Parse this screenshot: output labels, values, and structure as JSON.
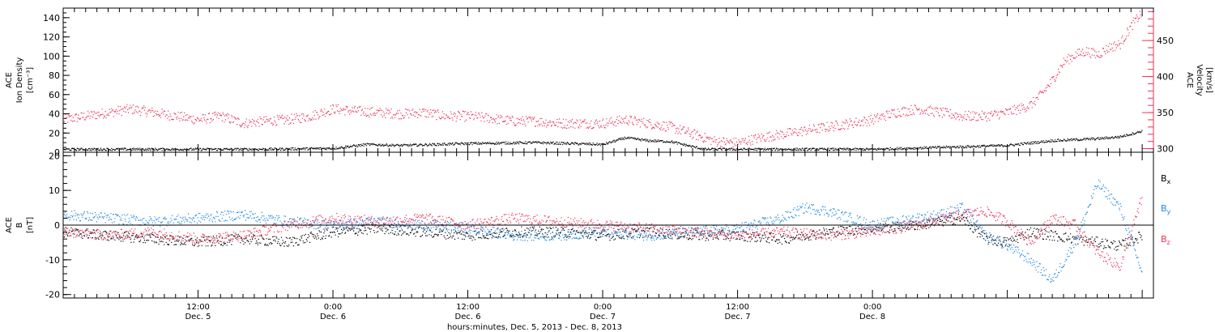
{
  "chart_data": [
    {
      "type": "scatter",
      "panel": "top",
      "ylabel_left": [
        "ACE",
        "Ion Density",
        "[cm⁻³]"
      ],
      "ylabel_right": [
        "ACE",
        "Velocity",
        "[km/s]"
      ],
      "ylim_left": [
        0,
        150
      ],
      "yticks_left": [
        0,
        20,
        40,
        60,
        80,
        100,
        120,
        140
      ],
      "ylim_right": [
        295,
        495
      ],
      "yticks_right": [
        300,
        350,
        400,
        450
      ],
      "xlim_hours": [
        0,
        97
      ],
      "series": [
        {
          "axis": "left",
          "color": "#000000",
          "x": [
            0,
            6,
            12,
            18,
            24,
            27,
            30,
            36,
            42,
            48,
            50,
            52,
            54,
            57,
            60,
            66,
            72,
            78,
            84,
            88,
            90,
            92,
            93,
            94,
            95,
            96
          ],
          "y": [
            3,
            3,
            3,
            3,
            4,
            8,
            7,
            9,
            10,
            8,
            15,
            12,
            11,
            3,
            3,
            3,
            3,
            5,
            7,
            12,
            13,
            14,
            15,
            16,
            19,
            22
          ]
        },
        {
          "axis": "right",
          "color": "#e8335a",
          "x": [
            0,
            2,
            4,
            6,
            8,
            10,
            12,
            14,
            16,
            18,
            20,
            22,
            24,
            26,
            28,
            30,
            32,
            34,
            36,
            38,
            40,
            42,
            44,
            46,
            48,
            50,
            52,
            54,
            56,
            58,
            60,
            62,
            64,
            66,
            68,
            70,
            72,
            74,
            76,
            78,
            80,
            82,
            84,
            86,
            87,
            88,
            89,
            90,
            91,
            92,
            93,
            94,
            95,
            96
          ],
          "y": [
            340,
            345,
            350,
            355,
            350,
            345,
            340,
            345,
            335,
            338,
            340,
            345,
            355,
            352,
            350,
            348,
            350,
            345,
            345,
            342,
            338,
            338,
            335,
            335,
            335,
            340,
            335,
            330,
            320,
            310,
            308,
            315,
            320,
            325,
            330,
            335,
            340,
            350,
            355,
            350,
            345,
            345,
            350,
            360,
            375,
            395,
            420,
            430,
            435,
            430,
            440,
            445,
            470,
            490
          ]
        }
      ]
    },
    {
      "type": "scatter",
      "panel": "bottom",
      "ylabel": [
        "ACE",
        "B",
        "[nT]"
      ],
      "ylim": [
        -21,
        21
      ],
      "yticks": [
        -20,
        -10,
        0,
        10,
        20
      ],
      "xlim_hours": [
        0,
        97
      ],
      "legend": [
        "Bx",
        "By",
        "Bz"
      ],
      "series": [
        {
          "name": "Bx",
          "color": "#000000",
          "x": [
            0,
            4,
            8,
            12,
            16,
            20,
            24,
            28,
            32,
            36,
            40,
            44,
            48,
            52,
            56,
            60,
            64,
            68,
            72,
            76,
            80,
            82,
            84,
            86,
            88,
            90,
            92,
            94,
            96
          ],
          "y": [
            -2,
            -3,
            -4,
            -5,
            -4,
            -5,
            -2,
            -1,
            -2,
            -3,
            -2,
            -2,
            -3,
            -2,
            -3,
            -3,
            -4,
            -2,
            -1,
            0,
            2,
            -4,
            -5,
            -2,
            -3,
            -4,
            -5,
            -6,
            -3
          ]
        },
        {
          "name": "By",
          "color": "#1f86e0",
          "x": [
            0,
            4,
            8,
            12,
            16,
            20,
            24,
            28,
            32,
            36,
            40,
            44,
            48,
            52,
            56,
            60,
            64,
            66,
            68,
            70,
            72,
            74,
            76,
            78,
            80,
            82,
            84,
            86,
            88,
            90,
            92,
            94,
            96
          ],
          "y": [
            3,
            2,
            1,
            2,
            3,
            1,
            0,
            1,
            0,
            -1,
            -3,
            -3,
            -2,
            -3,
            -2,
            -1,
            2,
            5,
            4,
            2,
            0,
            1,
            2,
            3,
            5,
            -3,
            -6,
            -10,
            -16,
            -5,
            12,
            5,
            -14
          ]
        },
        {
          "name": "Bz",
          "color": "#e8335a",
          "x": [
            0,
            4,
            8,
            12,
            16,
            20,
            24,
            28,
            32,
            36,
            40,
            44,
            48,
            52,
            56,
            60,
            64,
            68,
            72,
            76,
            80,
            82,
            84,
            86,
            88,
            90,
            92,
            94,
            96
          ],
          "y": [
            -2,
            -3,
            -2,
            -4,
            -3,
            0,
            2,
            1,
            2,
            0,
            2,
            1,
            0,
            -1,
            -2,
            -3,
            -2,
            -3,
            -2,
            0,
            3,
            4,
            1,
            -5,
            2,
            0,
            -8,
            -12,
            8
          ]
        }
      ]
    }
  ],
  "labels": {
    "bx_legend": "B",
    "bx_sub": "x",
    "by_legend": "B",
    "by_sub": "y",
    "bz_legend": "B",
    "bz_sub": "z",
    "x_ticks": [
      {
        "time": "12:00",
        "date": "Dec. 5"
      },
      {
        "time": "0:00",
        "date": "Dec. 6"
      },
      {
        "time": "12:00",
        "date": "Dec. 6"
      },
      {
        "time": "0:00",
        "date": "Dec. 7"
      },
      {
        "time": "12:00",
        "date": "Dec. 7"
      },
      {
        "time": "0:00",
        "date": "Dec. 8"
      }
    ],
    "x_tick_hours": [
      12,
      24,
      36,
      48,
      60,
      72
    ],
    "xlabel": "hours:minutes, Dec.  5, 2013 - Dec.  8, 2013"
  }
}
